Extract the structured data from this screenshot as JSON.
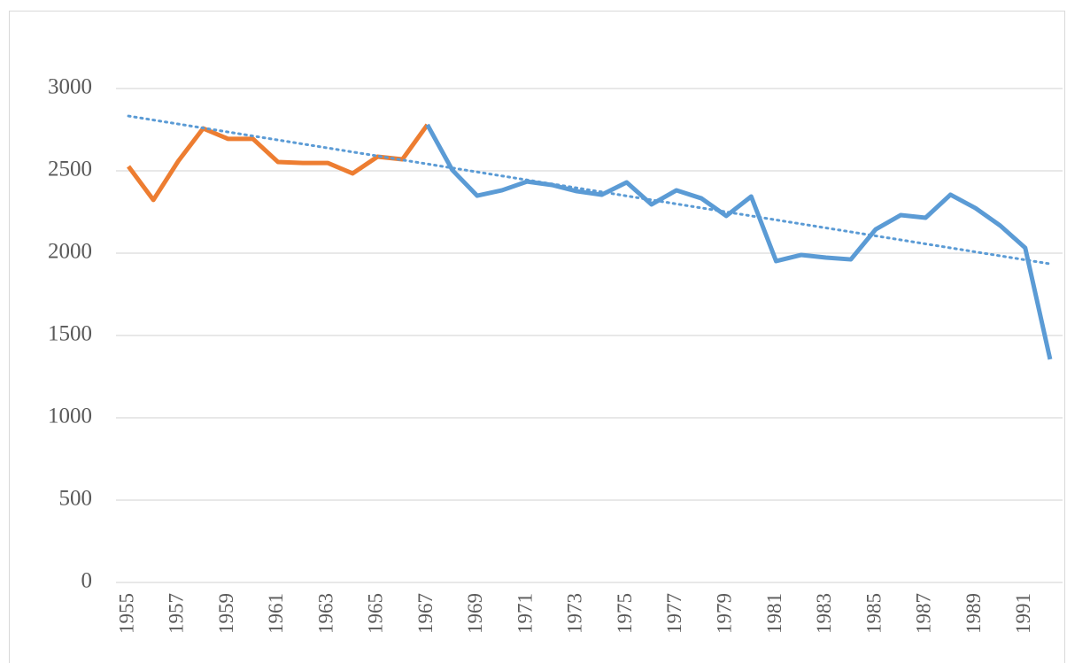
{
  "chart_data": {
    "type": "line",
    "x": [
      1955,
      1956,
      1957,
      1958,
      1959,
      1960,
      1961,
      1962,
      1963,
      1964,
      1965,
      1966,
      1967,
      1968,
      1969,
      1970,
      1971,
      1972,
      1973,
      1974,
      1975,
      1976,
      1977,
      1978,
      1979,
      1980,
      1981,
      1982,
      1983,
      1984,
      1985,
      1986,
      1987,
      1988,
      1989,
      1990,
      1991,
      1992
    ],
    "series": [
      {
        "color": "#ed7d31",
        "values": [
          2527,
          2323,
          2559,
          2758,
          2694,
          2694,
          2554,
          2548,
          2548,
          2484,
          2586,
          2570,
          2780,
          null,
          null,
          null,
          null,
          null,
          null,
          null,
          null,
          null,
          null,
          null,
          null,
          null,
          null,
          null,
          null,
          null,
          null,
          null,
          null,
          null,
          null,
          null,
          null,
          null
        ]
      },
      {
        "color": "#5b9bd5",
        "values": [
          null,
          null,
          null,
          null,
          null,
          null,
          null,
          null,
          null,
          null,
          null,
          null,
          2780,
          2505,
          2349,
          2382,
          2435,
          2414,
          2376,
          2355,
          2430,
          2296,
          2382,
          2333,
          2226,
          2344,
          1952,
          1989,
          1973,
          1962,
          2145,
          2231,
          2215,
          2355,
          2274,
          2167,
          2032,
          1355
        ]
      }
    ],
    "trendline": {
      "color": "#5b9bd5",
      "x": [
        1955,
        1992
      ],
      "values": [
        2833,
        1935
      ]
    },
    "xlim": [
      1954.5,
      1992.5
    ],
    "xticks": [
      1955,
      1957,
      1959,
      1961,
      1963,
      1965,
      1967,
      1969,
      1971,
      1973,
      1975,
      1977,
      1979,
      1981,
      1983,
      1985,
      1987,
      1989,
      1991
    ],
    "ylim": [
      0,
      3000
    ],
    "yticks": [
      0,
      500,
      1000,
      1500,
      2000,
      2500,
      3000
    ],
    "grid": true
  }
}
